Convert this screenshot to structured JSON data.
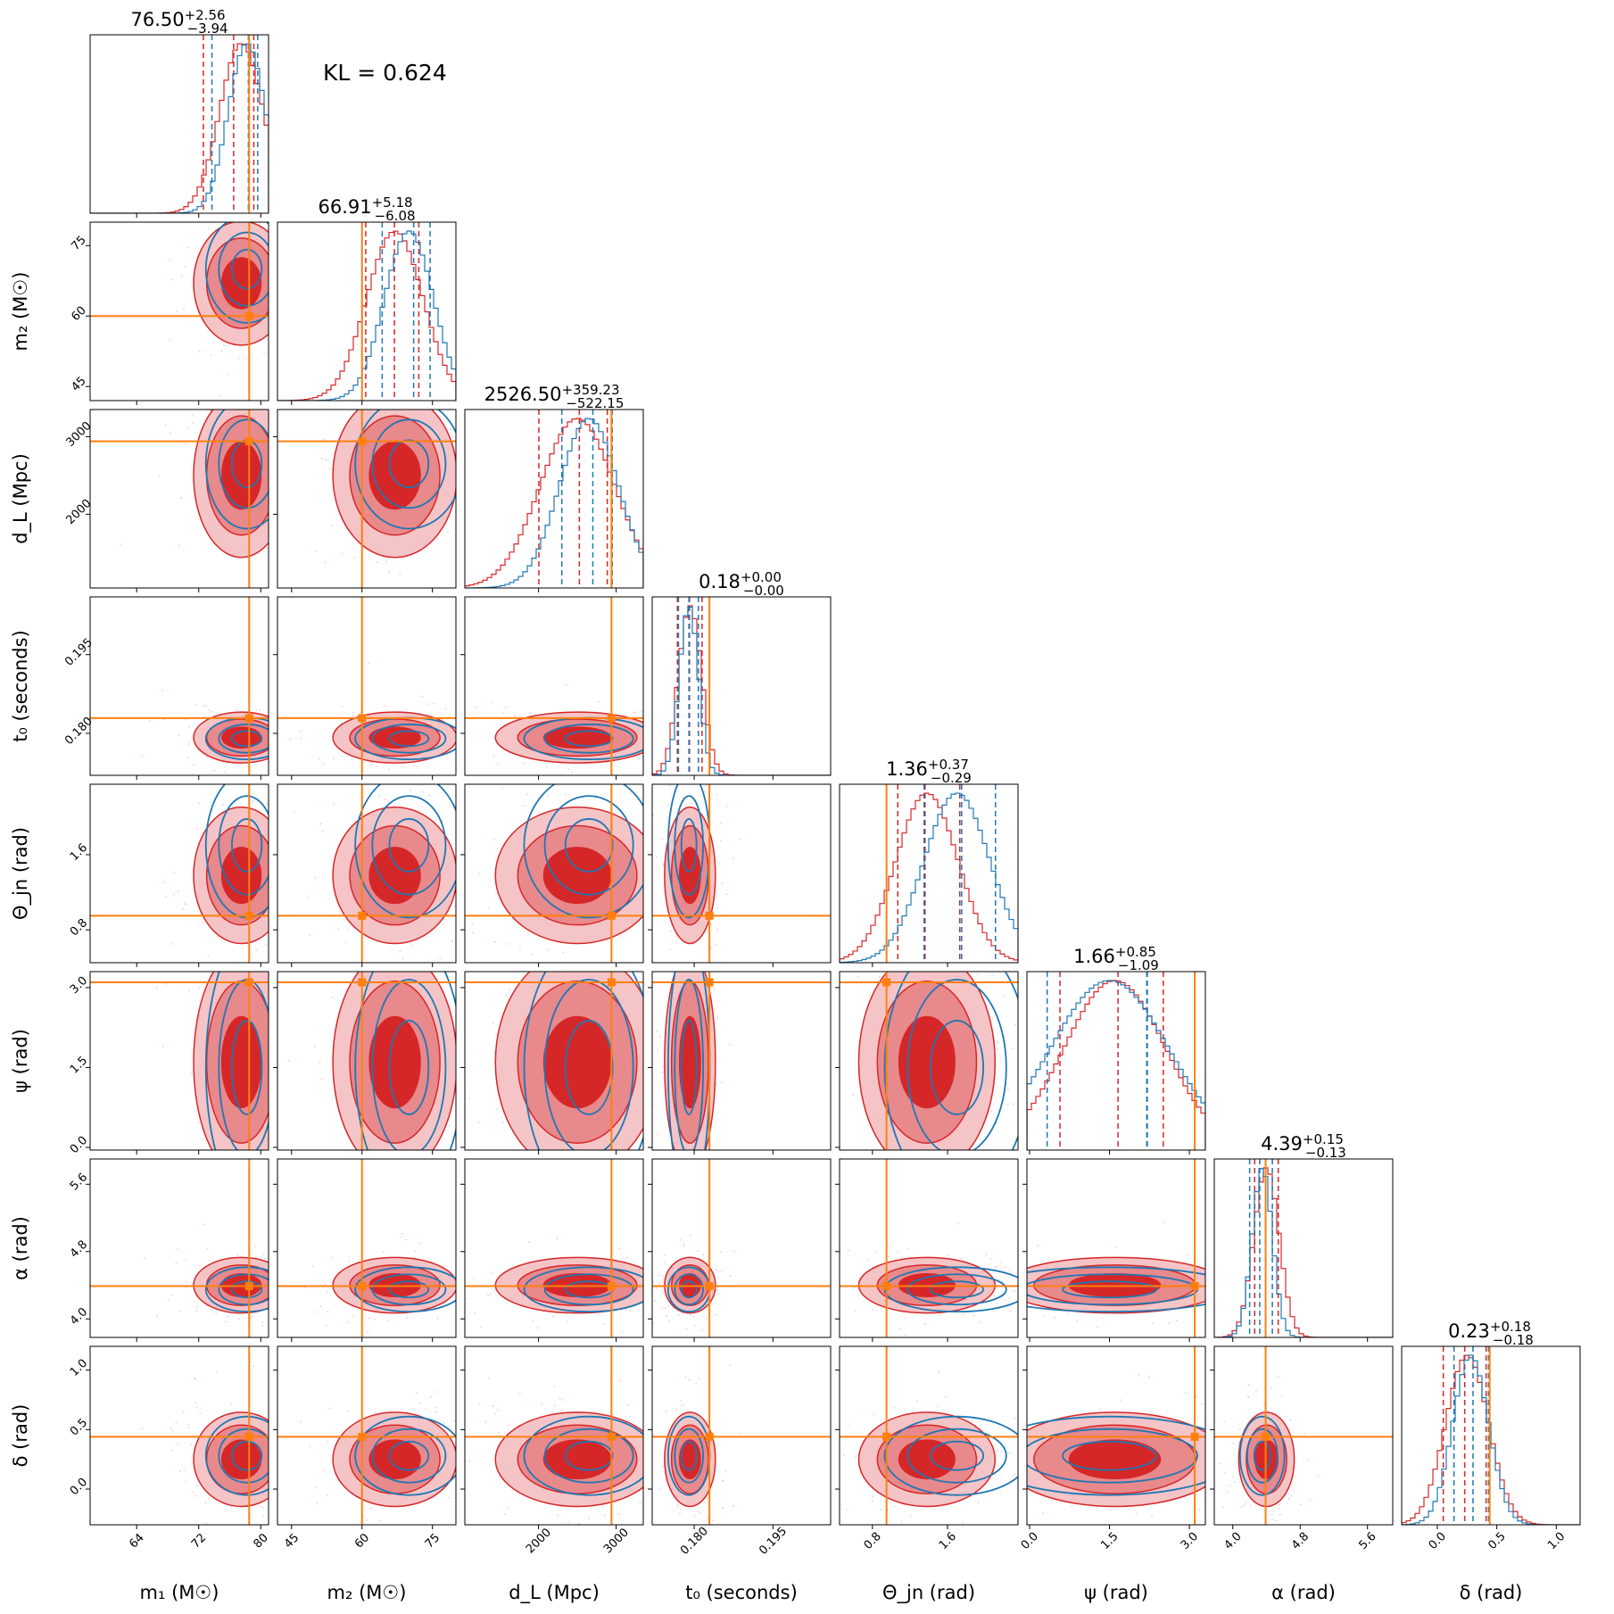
{
  "chart_data": {
    "type": "corner",
    "annotation": "KL = 0.624",
    "colors": {
      "series_a": "#d62728",
      "series_b": "#1f77b4",
      "truth": "#ff7f0e"
    },
    "parameters": [
      {
        "key": "m1",
        "label": "m₁ (M☉)",
        "range": [
          58,
          81
        ],
        "ticks": [
          64,
          72,
          80
        ],
        "tick_labels": [
          "64",
          "72",
          "80"
        ],
        "truth": 78.5,
        "title": "76.50",
        "plus": "+2.56",
        "minus": "−3.94",
        "a": {
          "mean": 77.5,
          "sd": 2.8,
          "q": [
            72.6,
            76.5,
            79.1
          ]
        },
        "b": {
          "mean": 78.2,
          "sd": 2.4,
          "q": [
            73.7,
            78.4,
            79.6
          ]
        }
      },
      {
        "key": "m2",
        "label": "m₂ (M☉)",
        "range": [
          42,
          80
        ],
        "ticks": [
          45,
          60,
          75
        ],
        "tick_labels": [
          "45",
          "60",
          "75"
        ],
        "truth": 60,
        "title": "66.91",
        "plus": "+5.18",
        "minus": "−6.08",
        "a": {
          "mean": 67,
          "sd": 6.0,
          "q": [
            60.8,
            66.9,
            72.1
          ]
        },
        "b": {
          "mean": 70,
          "sd": 5.2,
          "q": [
            64.3,
            71,
            74.5
          ]
        }
      },
      {
        "key": "dL",
        "label": "d_L (Mpc)",
        "range": [
          1050,
          3350
        ],
        "ticks": [
          2000,
          3000
        ],
        "tick_labels": [
          "2000",
          "3000"
        ],
        "truth": 2940,
        "title": "2526.50",
        "plus": "+359.23",
        "minus": "−522.15",
        "a": {
          "mean": 2500,
          "sd": 480,
          "q": [
            2004,
            2526,
            2886
          ]
        },
        "b": {
          "mean": 2650,
          "sd": 380,
          "q": [
            2300,
            2700,
            2950
          ]
        }
      },
      {
        "key": "t0",
        "label": "t₀ (seconds)",
        "range": [
          0.172,
          0.206
        ],
        "ticks": [
          0.18,
          0.195
        ],
        "tick_labels": [
          "0.180",
          "0.195"
        ],
        "truth": 0.1829,
        "title": "0.18",
        "plus": "+0.00",
        "minus": "−0.00",
        "a": {
          "mean": 0.1792,
          "sd": 0.0022,
          "q": [
            0.1768,
            0.1791,
            0.1815
          ]
        },
        "b": {
          "mean": 0.179,
          "sd": 0.0018,
          "q": [
            0.177,
            0.179,
            0.1808
          ]
        }
      },
      {
        "key": "theta",
        "label": "Θ_jn (rad)",
        "range": [
          0.45,
          2.35
        ],
        "ticks": [
          0.8,
          1.6
        ],
        "tick_labels": [
          "0.8",
          "1.6"
        ],
        "truth": 0.95,
        "title": "1.36",
        "plus": "+0.37",
        "minus": "−0.29",
        "a": {
          "mean": 1.38,
          "sd": 0.33,
          "q": [
            1.07,
            1.36,
            1.73
          ]
        },
        "b": {
          "mean": 1.7,
          "sd": 0.35,
          "q": [
            1.35,
            1.75,
            2.11
          ]
        }
      },
      {
        "key": "psi",
        "label": "ψ (rad)",
        "range": [
          -0.05,
          3.3
        ],
        "ticks": [
          0,
          1.5,
          3.0
        ],
        "tick_labels": [
          "0.0",
          "1.5",
          "3.0"
        ],
        "truth": 3.1,
        "title": "1.66",
        "plus": "+0.85",
        "minus": "−1.09",
        "a": {
          "mean": 1.6,
          "sd": 0.95,
          "q": [
            0.57,
            1.66,
            2.51
          ]
        },
        "b": {
          "mean": 1.5,
          "sd": 1.1,
          "q": [
            0.33,
            2.2,
            2.21
          ]
        }
      },
      {
        "key": "alpha",
        "label": "α (rad)",
        "range": [
          3.78,
          5.9
        ],
        "ticks": [
          4.0,
          4.8,
          5.6
        ],
        "tick_labels": [
          "4.0",
          "4.8",
          "5.6"
        ],
        "truth": 4.39,
        "title": "4.39",
        "plus": "+0.15",
        "minus": "−0.13",
        "a": {
          "mean": 4.4,
          "sd": 0.15,
          "q": [
            4.26,
            4.39,
            4.54
          ]
        },
        "b": {
          "mean": 4.35,
          "sd": 0.12,
          "q": [
            4.2,
            4.32,
            4.47
          ]
        }
      },
      {
        "key": "delta",
        "label": "δ (rad)",
        "range": [
          -0.3,
          1.2
        ],
        "ticks": [
          0,
          0.5,
          1.0
        ],
        "tick_labels": [
          "0.0",
          "0.5",
          "1.0"
        ],
        "truth": 0.44,
        "title": "0.23",
        "plus": "+0.18",
        "minus": "−0.18",
        "a": {
          "mean": 0.25,
          "sd": 0.18,
          "q": [
            0.05,
            0.23,
            0.41
          ]
        },
        "b": {
          "mean": 0.28,
          "sd": 0.15,
          "q": [
            0.14,
            0.3,
            0.43
          ]
        }
      }
    ]
  }
}
